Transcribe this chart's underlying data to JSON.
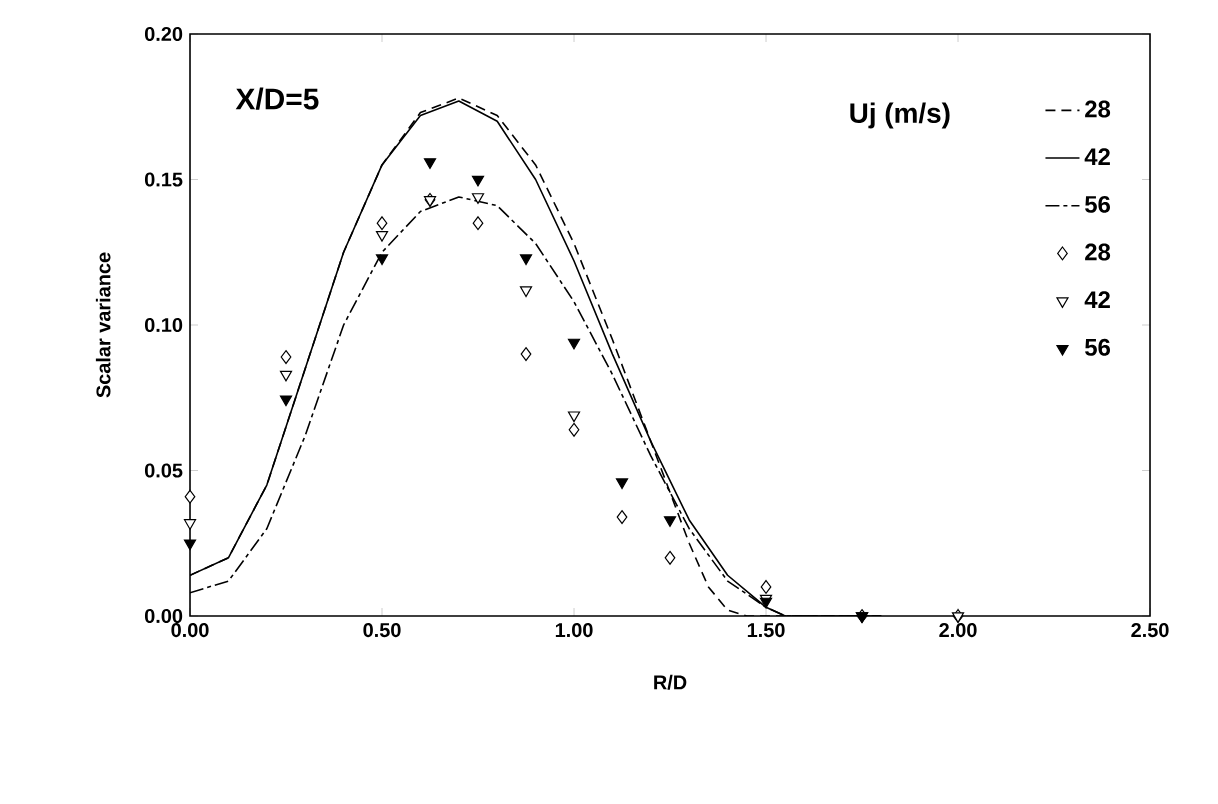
{
  "chart_data": {
    "type": "line",
    "xlabel": "R/D",
    "ylabel": "Scalar variance",
    "legend_title": "Uj (m/s)",
    "legend": "top right",
    "grid": false,
    "annotations": [
      "X/D=5"
    ],
    "xlim": [
      0,
      2.5
    ],
    "ylim": [
      0,
      0.2
    ],
    "xticks": [
      {
        "value": 0,
        "label": "0.00"
      },
      {
        "value": 0.5,
        "label": "0.50"
      },
      {
        "value": 1,
        "label": "1.00"
      },
      {
        "value": 1.5,
        "label": "1.50"
      },
      {
        "value": 2,
        "label": "2.00"
      },
      {
        "value": 2.5,
        "label": "2.50"
      }
    ],
    "yticks": [
      {
        "value": 0,
        "label": "0.00"
      },
      {
        "value": 0.05,
        "label": "0.05"
      },
      {
        "value": 0.1,
        "label": "0.10"
      },
      {
        "value": 0.15,
        "label": "0.15"
      },
      {
        "value": 0.2,
        "label": "0.20"
      }
    ],
    "series": [
      {
        "name": "28",
        "color": "#000000",
        "line_style": "dashed",
        "marker": "none",
        "x": [
          0,
          0.1,
          0.2,
          0.3,
          0.4,
          0.5,
          0.6,
          0.7,
          0.8,
          0.9,
          1.0,
          1.1,
          1.2,
          1.3,
          1.35,
          1.4,
          1.45,
          1.6,
          1.8
        ],
        "values": [
          0.014,
          0.02,
          0.045,
          0.085,
          0.125,
          0.155,
          0.173,
          0.178,
          0.172,
          0.155,
          0.128,
          0.095,
          0.06,
          0.025,
          0.01,
          0.002,
          0,
          0,
          0
        ]
      },
      {
        "name": "42",
        "color": "#000000",
        "line_style": "solid",
        "marker": "none",
        "x": [
          0,
          0.1,
          0.2,
          0.3,
          0.4,
          0.5,
          0.6,
          0.7,
          0.8,
          0.9,
          1.0,
          1.1,
          1.2,
          1.3,
          1.4,
          1.5,
          1.55,
          1.8
        ],
        "values": [
          0.014,
          0.02,
          0.045,
          0.085,
          0.125,
          0.155,
          0.172,
          0.177,
          0.17,
          0.15,
          0.122,
          0.09,
          0.06,
          0.033,
          0.014,
          0.003,
          0,
          0
        ]
      },
      {
        "name": "56",
        "color": "#000000",
        "line_style": "dashdot",
        "marker": "none",
        "x": [
          0,
          0.1,
          0.2,
          0.3,
          0.4,
          0.5,
          0.6,
          0.7,
          0.8,
          0.9,
          1.0,
          1.1,
          1.2,
          1.3,
          1.4,
          1.5,
          1.55,
          1.8
        ],
        "values": [
          0.008,
          0.012,
          0.03,
          0.062,
          0.1,
          0.125,
          0.139,
          0.144,
          0.141,
          0.128,
          0.108,
          0.083,
          0.055,
          0.03,
          0.012,
          0.003,
          0,
          0
        ]
      },
      {
        "type": "scatter",
        "name": "28",
        "color": "#000000",
        "marker": "diamond_open",
        "x": [
          0,
          0.25,
          0.5,
          0.625,
          0.75,
          0.875,
          1.0,
          1.125,
          1.25,
          1.5,
          1.75,
          2.0
        ],
        "values": [
          0.041,
          0.089,
          0.135,
          0.143,
          0.135,
          0.09,
          0.064,
          0.034,
          0.02,
          0.01,
          0,
          0
        ]
      },
      {
        "type": "scatter",
        "name": "42",
        "color": "#000000",
        "marker": "triangle_down_open",
        "x": [
          0,
          0.25,
          0.5,
          0.625,
          0.75,
          0.875,
          1.0,
          1.125,
          1.25,
          1.5,
          1.75,
          2.0
        ],
        "values": [
          0.032,
          0.083,
          0.131,
          0.143,
          0.144,
          0.112,
          0.069,
          null,
          null,
          0.006,
          0,
          0
        ]
      },
      {
        "type": "scatter",
        "name": "56",
        "color": "#000000",
        "marker": "triangle_down",
        "x": [
          0,
          0.25,
          0.5,
          0.625,
          0.75,
          0.875,
          1.0,
          1.125,
          1.25,
          1.5,
          1.75
        ],
        "values": [
          0.025,
          0.0745,
          0.123,
          0.156,
          0.15,
          0.123,
          0.094,
          0.046,
          0.033,
          0.005,
          0
        ]
      }
    ]
  }
}
